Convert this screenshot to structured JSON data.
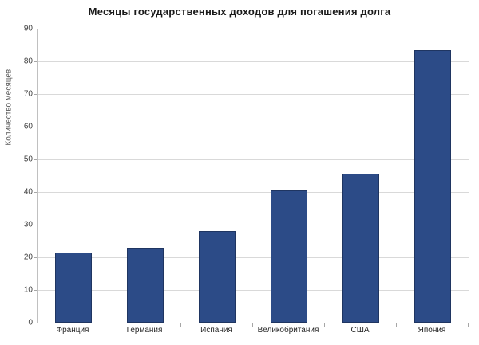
{
  "chart_data": {
    "type": "bar",
    "title": "Месяцы государственных доходов для погашения долга",
    "xlabel": "",
    "ylabel": "Количество месяцев",
    "categories": [
      "Франция",
      "Германия",
      "Испания",
      "Великобритания",
      "США",
      "Япония"
    ],
    "values": [
      21.5,
      23,
      28,
      40.5,
      45.5,
      83.5
    ],
    "ylim": [
      0,
      90
    ],
    "ytick_step": 10,
    "ytick_labels": [
      "0",
      "10",
      "20",
      "30",
      "40",
      "50",
      "60",
      "70",
      "80",
      "90"
    ],
    "grid": "horizontal",
    "legend": "none",
    "colors": {
      "bar_fill": "#2c4b87",
      "bar_border": "#1f3561",
      "gridline": "#d9d9d9",
      "axis_line": "#a6a6a6",
      "tick_text": "#404040",
      "category_text": "#262626",
      "title_text": "#1a1a1a",
      "y_axis_title_text": "#595959",
      "background": "#ffffff"
    }
  }
}
